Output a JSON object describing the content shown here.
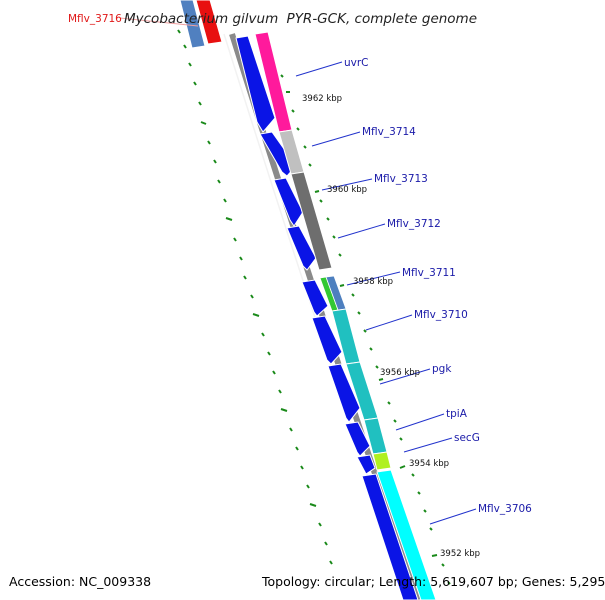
{
  "title": {
    "organism": "Mycobacterium gilvum",
    "strain": "PYR-GCK",
    "suffix": ", complete genome"
  },
  "footer": {
    "accession": "Accession: NC_009338",
    "stats": "Topology: circular; Length: 5,619,607 bp; Genes: 5,295"
  },
  "colors": {
    "forward_gene": "#0a14e6",
    "backbone": "#8a8a8a",
    "gc_skew_tick": "#1a8a1a",
    "label_line": "#2233cc",
    "label_text": "#1a1aa8",
    "highlight_label": "#e01818"
  },
  "scale_labels": [
    "3962 kbp",
    "3960 kbp",
    "3958 kbp",
    "3956 kbp",
    "3954 kbp",
    "3952 kbp"
  ],
  "gene_labels": [
    {
      "name": "Mflv_3716",
      "highlight": true
    },
    {
      "name": "uvrC"
    },
    {
      "name": "Mflv_3714"
    },
    {
      "name": "Mflv_3713"
    },
    {
      "name": "Mflv_3712"
    },
    {
      "name": "Mflv_3711"
    },
    {
      "name": "Mflv_3710"
    },
    {
      "name": "pgk"
    },
    {
      "name": "tpiA"
    },
    {
      "name": "secG"
    },
    {
      "name": "Mflv_3706"
    }
  ],
  "cog_colors": [
    "#ff1a9c",
    "#c0c0c0",
    "#6e6e6e",
    "#32c832",
    "#4d7fbf",
    "#20c0c0",
    "#20c0c0",
    "#20c0c0",
    "#b0f020",
    "#00ffff"
  ]
}
